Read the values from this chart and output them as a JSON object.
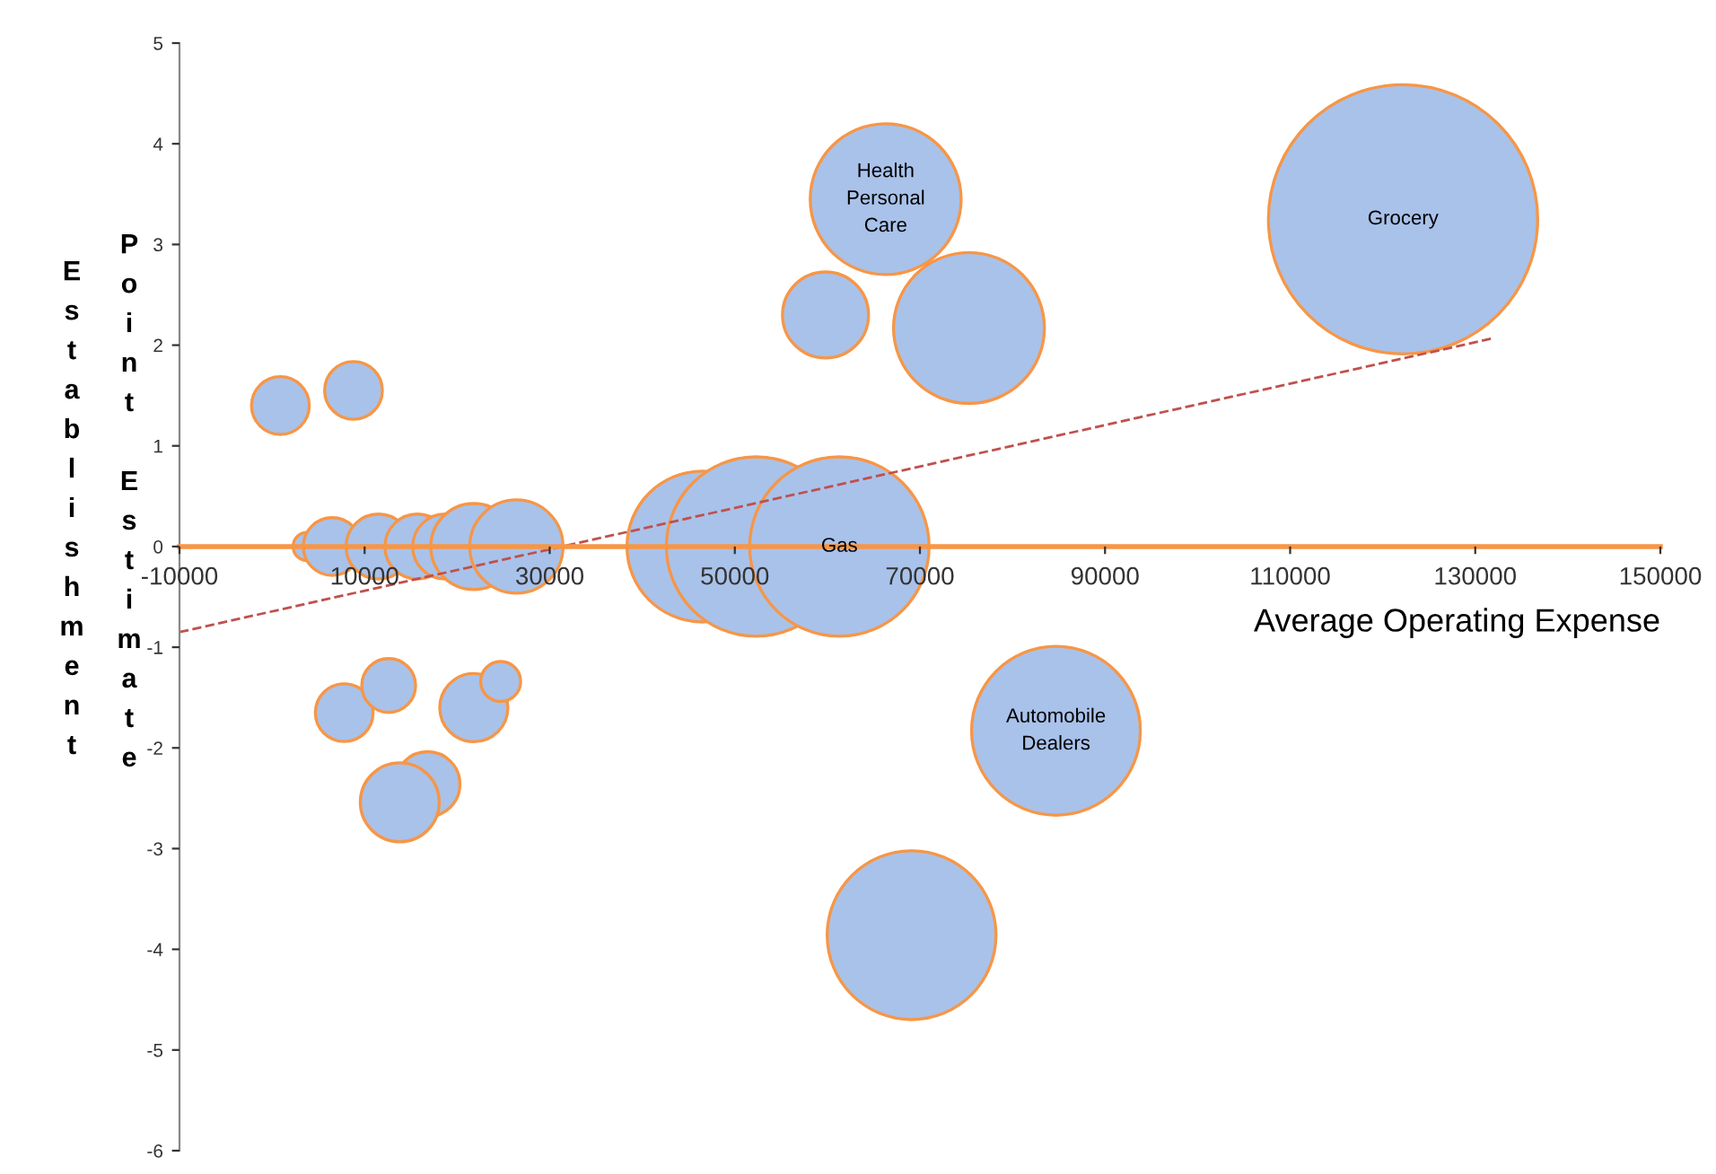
{
  "chart_data": {
    "type": "bubble",
    "xlabel": "Average Operating Expense",
    "ylabel": "Establishment Point Estimate",
    "xlim": [
      -10000,
      150000
    ],
    "xticks": [
      -10000,
      10000,
      30000,
      50000,
      70000,
      90000,
      110000,
      130000,
      150000
    ],
    "ylim": [
      -6,
      5
    ],
    "yticks": [
      -6,
      -5,
      -4,
      -3,
      -2,
      -1,
      0,
      1,
      2,
      3,
      4,
      5
    ],
    "grid": false,
    "legend": false,
    "series": [
      {
        "color": "#a9c2ea",
        "x": [
          900,
          8800,
          3800,
          6500,
          11500,
          15700,
          18700,
          21800,
          26400,
          7800,
          12600,
          21800,
          24700,
          16800,
          13800,
          46500,
          52300,
          61300,
          59800,
          66300,
          75300,
          122200,
          84700,
          69100
        ],
        "values": [
          1.4,
          1.55,
          0,
          0,
          0,
          0,
          0,
          0,
          0,
          -1.65,
          -1.38,
          -1.6,
          -1.34,
          -2.36,
          -2.54,
          0,
          0,
          0,
          2.3,
          3.45,
          2.17,
          3.25,
          -1.83,
          -3.86
        ],
        "sizes": [
          0.046,
          0.046,
          0.011,
          0.046,
          0.058,
          0.058,
          0.058,
          0.102,
          0.12,
          0.046,
          0.04,
          0.064,
          0.022,
          0.058,
          0.086,
          0.314,
          0.444,
          0.444,
          0.102,
          0.314,
          0.314,
          1,
          0.393,
          0.393
        ]
      },
      {
        "type": "line",
        "color": "#c0504d",
        "line_style": "dashed",
        "x": [
          -10000,
          132000
        ],
        "values": [
          -0.85,
          2.07
        ]
      }
    ],
    "annotations": [
      {
        "text": "Gas",
        "x": 61300,
        "y": 0
      },
      {
        "text": "Health\nPersonal\nCare",
        "x": 66300,
        "y": 3.45
      },
      {
        "text": "Grocery",
        "x": 122200,
        "y": 3.25
      },
      {
        "text": "Automobile\nDealers",
        "x": 84700,
        "y": -1.83
      }
    ]
  }
}
